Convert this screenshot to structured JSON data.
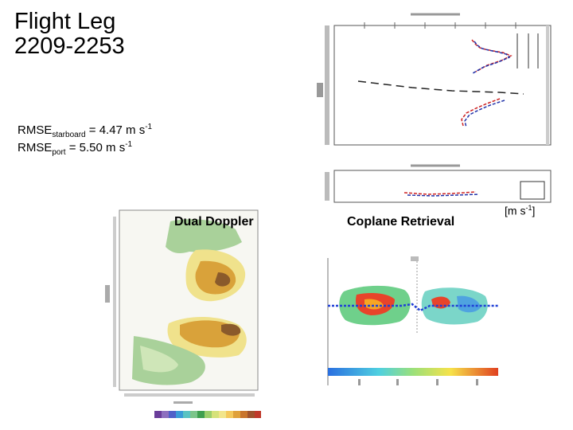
{
  "title": {
    "line1": "Flight Leg",
    "line2": "2209-2253"
  },
  "rmse": {
    "starboard": {
      "prefix": "RMSE",
      "sub": "starboard",
      "value": " = 4.47 m s",
      "exp": "-1"
    },
    "port": {
      "prefix": "RMSE",
      "sub": "port",
      "value": " =  5.50 m s",
      "exp": "-1"
    }
  },
  "panels": {
    "dual_doppler_label": "Dual Doppler",
    "coplane_label": "Coplane Retrieval"
  },
  "units": {
    "base": "[m s",
    "exp": "-1",
    "close": "]"
  },
  "colors": {
    "starboard_profile": "#cc2222",
    "port_profile": "#2233aa",
    "flight_track": "#1f3fd6",
    "colorbar_low": "#2a6fe0",
    "colorbar_high": "#e04020"
  },
  "palette_swatches": [
    "#6a3d9a",
    "#8d6fbf",
    "#4f60c9",
    "#3a9bd8",
    "#59c3c3",
    "#7cc58a",
    "#3f9f4f",
    "#9ccf6b",
    "#d6e27a",
    "#f2e58a",
    "#f4c85a",
    "#e0a13a",
    "#c9752d",
    "#a0522d",
    "#c0392b",
    "#e05a7a"
  ]
}
